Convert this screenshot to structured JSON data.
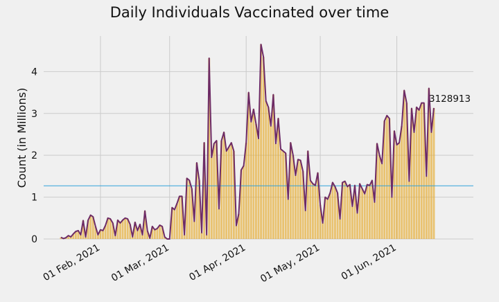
{
  "chart_data": {
    "type": "bar",
    "title": "Daily Individuals Vaccinated over time",
    "xlabel": "",
    "ylabel": "Count (in Millions)",
    "x_start": "2021-01-16",
    "x_ticks": [
      {
        "label": "01 Feb, 2021",
        "date": "2021-02-01"
      },
      {
        "label": "01 Mar, 2021",
        "date": "2021-03-01"
      },
      {
        "label": "01 Apr, 2021",
        "date": "2021-04-01"
      },
      {
        "label": "01 May, 2021",
        "date": "2021-05-01"
      },
      {
        "label": "01 Jun, 2021",
        "date": "2021-06-01"
      }
    ],
    "y_ticks": [
      0,
      1,
      2,
      3,
      4
    ],
    "xlim": [
      "2021-01-09",
      "2021-07-02"
    ],
    "ylim": [
      0,
      4.85
    ],
    "grid": true,
    "mean_line": 1.27,
    "last_value_label": "3128913",
    "colors": {
      "bar": "#e5ae38",
      "line": "#6d2b66",
      "mean_line": "#30a2da",
      "background": "#f0f0f0",
      "grid": "#cbcbcb"
    },
    "series": [
      {
        "values": [
          0.04,
          0.01,
          0.03,
          0.08,
          0.05,
          0.12,
          0.18,
          0.2,
          0.1,
          0.44,
          0.05,
          0.45,
          0.57,
          0.53,
          0.3,
          0.1,
          0.22,
          0.2,
          0.32,
          0.5,
          0.48,
          0.38,
          0.08,
          0.45,
          0.38,
          0.45,
          0.5,
          0.48,
          0.35,
          0.05,
          0.4,
          0.2,
          0.35,
          0.1,
          0.67,
          0.2,
          0.02,
          0.3,
          0.22,
          0.25,
          0.33,
          0.3,
          0.05,
          0.0,
          0.0,
          0.75,
          0.7,
          0.85,
          1.02,
          1.02,
          0.1,
          1.45,
          1.4,
          1.2,
          0.42,
          1.82,
          1.4,
          0.15,
          2.3,
          0.1,
          4.32,
          1.95,
          2.28,
          2.35,
          0.72,
          2.35,
          2.55,
          2.1,
          2.2,
          2.3,
          2.1,
          0.32,
          0.6,
          1.65,
          1.75,
          2.3,
          3.5,
          2.8,
          3.1,
          2.75,
          2.4,
          4.65,
          4.35,
          3.3,
          3.15,
          2.7,
          3.45,
          2.28,
          2.88,
          2.15,
          2.1,
          2.05,
          0.95,
          2.3,
          2.0,
          1.52,
          1.9,
          1.88,
          1.62,
          0.68,
          2.1,
          1.4,
          1.32,
          1.28,
          1.58,
          0.82,
          0.38,
          1.0,
          0.95,
          1.1,
          1.35,
          1.25,
          1.1,
          0.48,
          1.35,
          1.38,
          1.25,
          1.3,
          0.78,
          1.28,
          0.62,
          1.32,
          1.2,
          1.08,
          1.3,
          1.28,
          1.4,
          0.88,
          2.28,
          2.0,
          1.8,
          2.82,
          2.95,
          2.88,
          1.0,
          2.58,
          2.25,
          2.3,
          2.7,
          3.55,
          3.25,
          1.38,
          3.12,
          2.55,
          3.15,
          3.08,
          3.25,
          3.25,
          1.5,
          3.6,
          2.55,
          3.13
        ]
      }
    ]
  }
}
